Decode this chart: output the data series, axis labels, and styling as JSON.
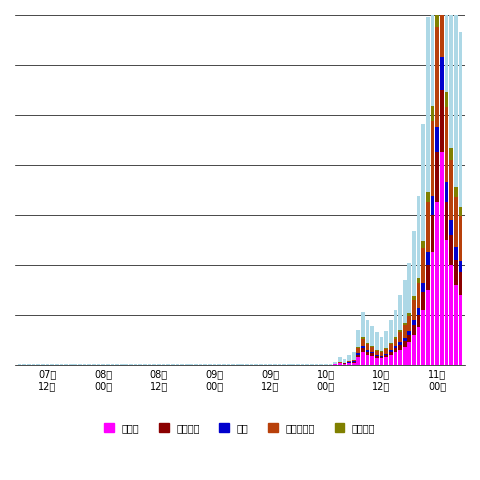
{
  "title": "",
  "xlabel": "",
  "ylabel": "",
  "background_color": "#ffffff",
  "legend_labels": [
    "トルコ",
    "イタリア",
    "米国",
    "ウクライナ",
    "ベトナム"
  ],
  "legend_colors": [
    "#ff00ff",
    "#8b0000",
    "#0000cd",
    "#b8400a",
    "#808000"
  ],
  "bar_colors": [
    "#ff00ff",
    "#8b0000",
    "#0000cd",
    "#b8400a",
    "#808000",
    "#add8e6"
  ],
  "x_tick_labels": [
    "07日\n12時",
    "08日\n00時",
    "08日\n12時",
    "09日\n00時",
    "09日\n12時",
    "10日\n00時",
    "10日\n12時",
    "11日\n00時"
  ],
  "n_bars": 96,
  "n_groups": 8,
  "bars_per_group": 12,
  "ylim": [
    0,
    14000
  ],
  "grid_lines": [
    0,
    2000,
    4000,
    6000,
    8000,
    10000,
    12000,
    14000
  ],
  "series": {
    "turkey": [
      0,
      0,
      0,
      0,
      0,
      0,
      1,
      0,
      0,
      1,
      0,
      0,
      0,
      0,
      0,
      0,
      1,
      0,
      0,
      0,
      1,
      0,
      1,
      0,
      0,
      0,
      1,
      0,
      0,
      0,
      0,
      1,
      0,
      0,
      1,
      0,
      0,
      1,
      0,
      0,
      0,
      1,
      0,
      0,
      0,
      1,
      0,
      0,
      0,
      1,
      0,
      0,
      1,
      0,
      0,
      0,
      1,
      0,
      0,
      1,
      0,
      0,
      0,
      1,
      0,
      0,
      0,
      1,
      20,
      50,
      40,
      60,
      80,
      300,
      500,
      400,
      350,
      280,
      250,
      300,
      400,
      500,
      600,
      700,
      900,
      1200,
      1500,
      2200,
      3000,
      4500,
      6500,
      8500,
      5000,
      4000,
      3200,
      2800
    ],
    "italy": [
      0,
      0,
      0,
      0,
      0,
      0,
      0,
      0,
      0,
      0,
      0,
      0,
      0,
      0,
      0,
      0,
      0,
      0,
      0,
      0,
      0,
      0,
      0,
      0,
      0,
      0,
      0,
      0,
      0,
      0,
      0,
      0,
      0,
      0,
      0,
      0,
      0,
      0,
      0,
      0,
      0,
      0,
      0,
      0,
      0,
      0,
      0,
      0,
      0,
      0,
      0,
      0,
      0,
      0,
      0,
      0,
      0,
      0,
      0,
      0,
      0,
      0,
      0,
      0,
      0,
      0,
      0,
      0,
      5,
      15,
      10,
      20,
      30,
      100,
      150,
      120,
      100,
      80,
      70,
      90,
      120,
      150,
      200,
      250,
      300,
      400,
      500,
      700,
      1000,
      1500,
      2000,
      2500,
      1500,
      1200,
      1000,
      900
    ],
    "usa": [
      0,
      0,
      0,
      0,
      0,
      0,
      0,
      0,
      0,
      0,
      0,
      0,
      0,
      0,
      0,
      0,
      0,
      0,
      0,
      0,
      0,
      0,
      0,
      0,
      0,
      0,
      0,
      0,
      0,
      0,
      0,
      0,
      0,
      0,
      0,
      0,
      0,
      0,
      0,
      0,
      0,
      0,
      0,
      0,
      0,
      0,
      0,
      0,
      0,
      0,
      0,
      0,
      0,
      0,
      0,
      0,
      0,
      0,
      0,
      0,
      0,
      0,
      0,
      0,
      0,
      0,
      0,
      0,
      3,
      8,
      5,
      10,
      15,
      50,
      80,
      60,
      50,
      40,
      35,
      45,
      60,
      80,
      100,
      130,
      160,
      200,
      260,
      370,
      500,
      750,
      1000,
      1300,
      800,
      600,
      500,
      450
    ],
    "ukraine": [
      0,
      0,
      0,
      0,
      0,
      0,
      0,
      0,
      0,
      0,
      0,
      0,
      0,
      0,
      0,
      0,
      0,
      0,
      0,
      0,
      0,
      0,
      0,
      0,
      0,
      0,
      0,
      0,
      0,
      0,
      0,
      0,
      0,
      0,
      0,
      0,
      0,
      0,
      0,
      0,
      0,
      0,
      0,
      0,
      0,
      0,
      0,
      0,
      0,
      0,
      0,
      0,
      0,
      0,
      0,
      0,
      0,
      0,
      0,
      0,
      0,
      0,
      0,
      0,
      0,
      0,
      0,
      0,
      10,
      30,
      20,
      40,
      60,
      200,
      300,
      240,
      200,
      160,
      140,
      180,
      240,
      300,
      400,
      500,
      600,
      800,
      1000,
      1400,
      2000,
      3000,
      4000,
      5000,
      3000,
      2400,
      2000,
      1800
    ],
    "vietnam": [
      0,
      0,
      0,
      0,
      0,
      0,
      0,
      0,
      0,
      0,
      0,
      0,
      0,
      0,
      0,
      0,
      0,
      0,
      0,
      0,
      0,
      0,
      0,
      0,
      0,
      0,
      0,
      0,
      0,
      0,
      0,
      0,
      0,
      0,
      0,
      0,
      0,
      0,
      0,
      0,
      0,
      0,
      0,
      0,
      0,
      0,
      0,
      0,
      0,
      0,
      0,
      0,
      0,
      0,
      0,
      0,
      0,
      0,
      0,
      0,
      0,
      0,
      0,
      0,
      0,
      0,
      0,
      0,
      2,
      5,
      3,
      8,
      12,
      40,
      60,
      48,
      40,
      32,
      28,
      36,
      48,
      60,
      80,
      100,
      120,
      160,
      200,
      280,
      400,
      600,
      800,
      1000,
      600,
      480,
      400,
      360
    ],
    "other": [
      5,
      3,
      4,
      2,
      5,
      3,
      4,
      2,
      3,
      5,
      3,
      4,
      3,
      4,
      2,
      5,
      3,
      4,
      2,
      3,
      5,
      3,
      4,
      2,
      4,
      2,
      3,
      5,
      3,
      4,
      2,
      3,
      5,
      3,
      4,
      2,
      3,
      5,
      3,
      4,
      2,
      3,
      5,
      3,
      4,
      2,
      3,
      5,
      4,
      2,
      3,
      5,
      3,
      4,
      2,
      3,
      5,
      3,
      4,
      2,
      3,
      5,
      3,
      4,
      2,
      3,
      5,
      10,
      50,
      200,
      150,
      250,
      300,
      700,
      1000,
      900,
      800,
      700,
      600,
      700,
      900,
      1100,
      1400,
      1700,
      2000,
      2600,
      3300,
      4700,
      7000,
      10000,
      14000,
      18000,
      12000,
      10000,
      8000,
      7000
    ]
  }
}
